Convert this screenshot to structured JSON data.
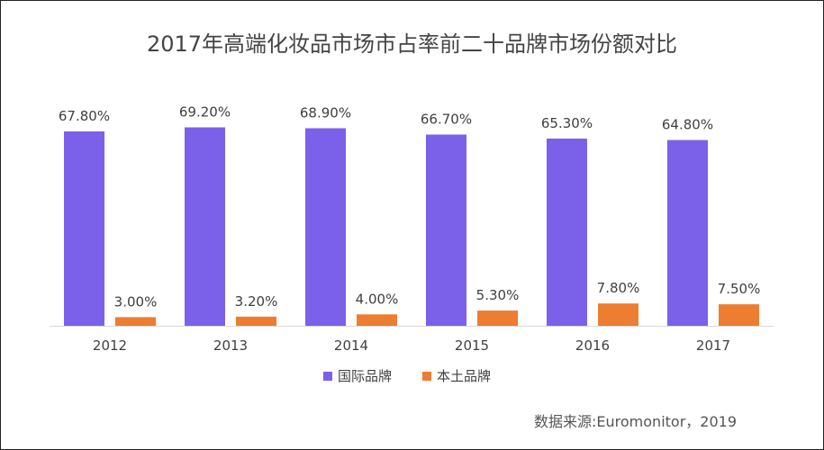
{
  "chart_data": {
    "type": "bar",
    "title": "2017年高端化妆品市场市占率前二十品牌市场份额对比",
    "categories": [
      "2012",
      "2013",
      "2014",
      "2015",
      "2016",
      "2017"
    ],
    "series": [
      {
        "name": "国际品牌",
        "values": [
          67.8,
          69.2,
          68.9,
          66.7,
          65.3,
          64.8
        ],
        "labels": [
          "67.80%",
          "69.20%",
          "68.90%",
          "66.70%",
          "65.30%",
          "64.80%"
        ],
        "color": "#7b61ea"
      },
      {
        "name": "本土品牌",
        "values": [
          3.0,
          3.2,
          4.0,
          5.3,
          7.8,
          7.5
        ],
        "labels": [
          "3.00%",
          "3.20%",
          "4.00%",
          "5.30%",
          "7.80%",
          "7.50%"
        ],
        "color": "#ed7d31"
      }
    ],
    "ylim": [
      0,
      70
    ],
    "grid": false,
    "legend_position": "bottom",
    "source": "数据来源:Euromonitor，2019",
    "axis_color": "#d9d9d9"
  }
}
